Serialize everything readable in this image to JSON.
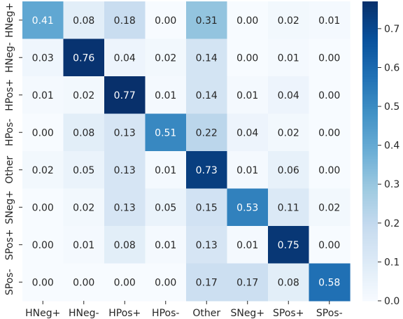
{
  "chart_data": {
    "type": "heatmap",
    "title": "",
    "xlabel": "",
    "ylabel": "",
    "row_labels": [
      "HNeg+",
      "HNeg-",
      "HPos+",
      "HPos-",
      "Other",
      "SNeg+",
      "SPos+",
      "SPos-"
    ],
    "col_labels": [
      "HNeg+",
      "HNeg-",
      "HPos+",
      "HPos-",
      "Other",
      "SNeg+",
      "SPos+",
      "SPos-"
    ],
    "values": [
      [
        0.41,
        0.08,
        0.18,
        0.0,
        0.31,
        0.0,
        0.02,
        0.01
      ],
      [
        0.03,
        0.76,
        0.04,
        0.02,
        0.14,
        0.0,
        0.01,
        0.0
      ],
      [
        0.01,
        0.02,
        0.77,
        0.01,
        0.14,
        0.01,
        0.04,
        0.0
      ],
      [
        0.0,
        0.08,
        0.13,
        0.51,
        0.22,
        0.04,
        0.02,
        0.0
      ],
      [
        0.02,
        0.05,
        0.13,
        0.01,
        0.73,
        0.01,
        0.06,
        0.0
      ],
      [
        0.0,
        0.02,
        0.13,
        0.05,
        0.15,
        0.53,
        0.11,
        0.02
      ],
      [
        0.0,
        0.01,
        0.08,
        0.01,
        0.13,
        0.01,
        0.75,
        0.0
      ],
      [
        0.0,
        0.0,
        0.0,
        0.0,
        0.17,
        0.17,
        0.08,
        0.58
      ]
    ],
    "value_format": "0.00",
    "colormap": "Blues",
    "color_low": "#f7fbff",
    "color_high": "#08306b",
    "colorbar": {
      "min": 0.0,
      "max": 0.77,
      "ticks": [
        0.0,
        0.1,
        0.2,
        0.3,
        0.4,
        0.5,
        0.6,
        0.7
      ],
      "tick_labels": [
        "0.0",
        "0.1",
        "0.2",
        "0.3",
        "0.4",
        "0.5",
        "0.6",
        "0.7"
      ]
    }
  }
}
